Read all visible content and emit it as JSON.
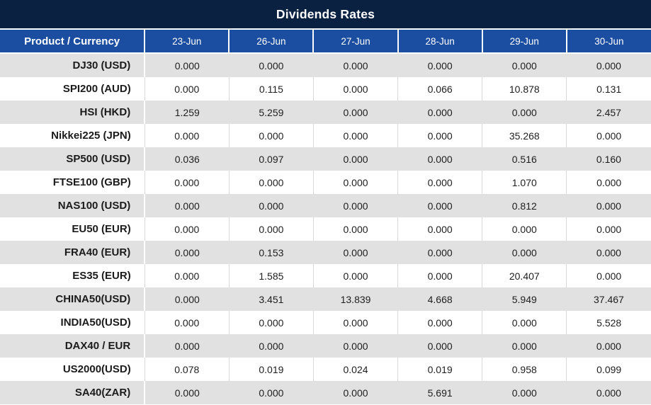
{
  "chart_data": {
    "type": "table",
    "title": "Dividends Rates",
    "product_column_header": "Product / Currency",
    "date_columns": [
      "23-Jun",
      "26-Jun",
      "27-Jun",
      "28-Jun",
      "29-Jun",
      "30-Jun"
    ],
    "rows": [
      {
        "product": "DJ30 (USD)",
        "values": [
          "0.000",
          "0.000",
          "0.000",
          "0.000",
          "0.000",
          "0.000"
        ]
      },
      {
        "product": "SPI200 (AUD)",
        "values": [
          "0.000",
          "0.115",
          "0.000",
          "0.066",
          "10.878",
          "0.131"
        ]
      },
      {
        "product": "HSI (HKD)",
        "values": [
          "1.259",
          "5.259",
          "0.000",
          "0.000",
          "0.000",
          "2.457"
        ]
      },
      {
        "product": "Nikkei225 (JPN)",
        "values": [
          "0.000",
          "0.000",
          "0.000",
          "0.000",
          "35.268",
          "0.000"
        ]
      },
      {
        "product": "SP500 (USD)",
        "values": [
          "0.036",
          "0.097",
          "0.000",
          "0.000",
          "0.516",
          "0.160"
        ]
      },
      {
        "product": "FTSE100 (GBP)",
        "values": [
          "0.000",
          "0.000",
          "0.000",
          "0.000",
          "1.070",
          "0.000"
        ]
      },
      {
        "product": "NAS100 (USD)",
        "values": [
          "0.000",
          "0.000",
          "0.000",
          "0.000",
          "0.812",
          "0.000"
        ]
      },
      {
        "product": "EU50 (EUR)",
        "values": [
          "0.000",
          "0.000",
          "0.000",
          "0.000",
          "0.000",
          "0.000"
        ]
      },
      {
        "product": "FRA40 (EUR)",
        "values": [
          "0.000",
          "0.153",
          "0.000",
          "0.000",
          "0.000",
          "0.000"
        ]
      },
      {
        "product": "ES35 (EUR)",
        "values": [
          "0.000",
          "1.585",
          "0.000",
          "0.000",
          "20.407",
          "0.000"
        ]
      },
      {
        "product": "CHINA50(USD)",
        "values": [
          "0.000",
          "3.451",
          "13.839",
          "4.668",
          "5.949",
          "37.467"
        ]
      },
      {
        "product": "INDIA50(USD)",
        "values": [
          "0.000",
          "0.000",
          "0.000",
          "0.000",
          "0.000",
          "5.528"
        ]
      },
      {
        "product": "DAX40 / EUR",
        "values": [
          "0.000",
          "0.000",
          "0.000",
          "0.000",
          "0.000",
          "0.000"
        ]
      },
      {
        "product": "US2000(USD)",
        "values": [
          "0.078",
          "0.019",
          "0.024",
          "0.019",
          "0.958",
          "0.099"
        ]
      },
      {
        "product": "SA40(ZAR)",
        "values": [
          "0.000",
          "0.000",
          "0.000",
          "5.691",
          "0.000",
          "0.000"
        ]
      }
    ],
    "zero_value": "0.000",
    "highlight": {
      "rule": "non-zero values are shown in red",
      "color": "#ff0000"
    },
    "layout": {
      "first_row_shaded": true
    }
  },
  "colors": {
    "title_bg": "#0b2142",
    "header_bg": "#1b4da0",
    "alt_row_bg": "#e1e1e1",
    "grid_light": "#d9d9d9",
    "nonzero_text": "#ff0000",
    "zero_text": "#1e1e1e"
  }
}
